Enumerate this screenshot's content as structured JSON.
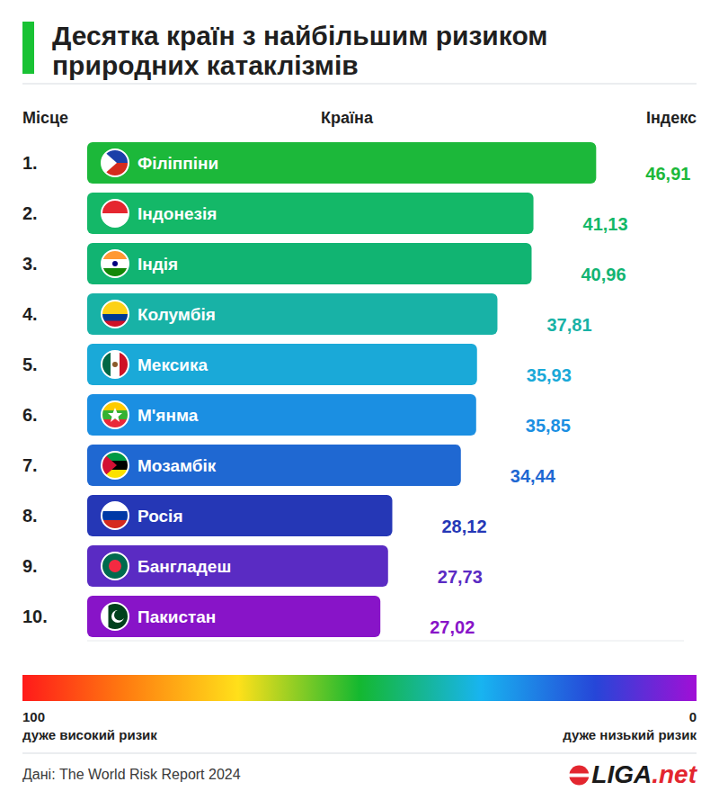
{
  "chart_data": {
    "type": "bar",
    "orientation": "horizontal",
    "title": "Десятка країн з найбільшим ризиком природних катаклізмів",
    "column_labels": [
      "Місце",
      "Країна",
      "Індекс"
    ],
    "rank_labels": [
      "1.",
      "2.",
      "3.",
      "4.",
      "5.",
      "6.",
      "7.",
      "8.",
      "9.",
      "10."
    ],
    "categories": [
      "Філіппіни",
      "Індонезія",
      "Індія",
      "Колумбія",
      "Мексика",
      "М'янма",
      "Мозамбік",
      "Росія",
      "Бангладеш",
      "Пакистан"
    ],
    "values": [
      46.91,
      41.13,
      40.96,
      37.81,
      35.93,
      35.85,
      34.44,
      28.12,
      27.73,
      27.02
    ],
    "value_labels": [
      "46,91",
      "41,13",
      "40,96",
      "37,81",
      "35,93",
      "35,85",
      "34,44",
      "28,12",
      "27,73",
      "27,02"
    ],
    "colors": [
      "#1cb83a",
      "#14b868",
      "#11b472",
      "#18b2a6",
      "#1aa9d8",
      "#1b8fe2",
      "#1f68d2",
      "#2537b6",
      "#5a2bc3",
      "#8814c8"
    ],
    "xlim": [
      0,
      55
    ],
    "tick_labels": false,
    "data_labels": true,
    "grid": false,
    "color_scale": {
      "range": [
        100,
        0
      ],
      "ticks": [
        100,
        0
      ],
      "labels": [
        "дуже високий ризик",
        "дуже низький ризик"
      ]
    },
    "source": "Дані: The World Risk Report 2024",
    "brand": "LIGA.net"
  }
}
